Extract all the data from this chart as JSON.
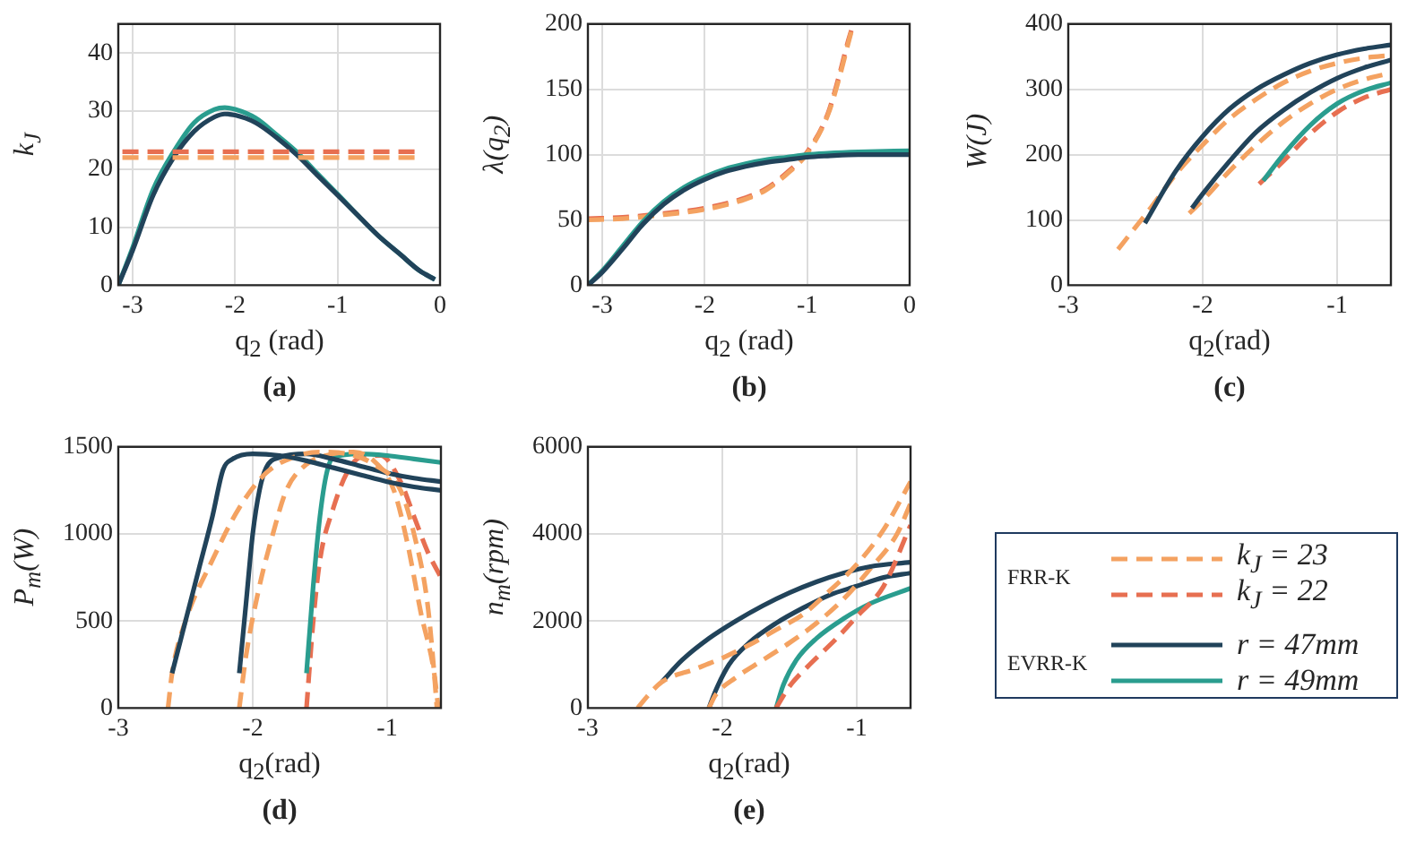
{
  "chart_data": [
    {
      "type": "line",
      "title": "(a)",
      "xlabel": "q$_{2}$ (rad)",
      "ylabel": "k$_{J}$",
      "xlim": [
        -3.14,
        0
      ],
      "xticks": [
        -3,
        -2,
        -1,
        0
      ],
      "ylim": [
        0,
        45
      ],
      "yticks": [
        0,
        10,
        20,
        30,
        40
      ],
      "grid": true,
      "legend": false,
      "marker": "none",
      "series": [
        {
          "color": "#f4a261",
          "line_style": "dashed",
          "x": [
            -3.1,
            -0.2
          ],
          "values": [
            22,
            22
          ]
        },
        {
          "color": "#e76f51",
          "line_style": "dashed",
          "x": [
            -3.1,
            -0.2
          ],
          "values": [
            23,
            23
          ]
        },
        {
          "color": "#21435a",
          "line_style": "solid",
          "x": [
            -3.14,
            -3.0,
            -2.8,
            -2.6,
            -2.4,
            -2.2,
            -2.1,
            -2.0,
            -1.8,
            -1.6,
            -1.4,
            -1.2,
            -1.0,
            -0.8,
            -0.6,
            -0.4,
            -0.2,
            -0.05
          ],
          "values": [
            0,
            6,
            15.5,
            22,
            26.5,
            29,
            29.5,
            29.3,
            28,
            25.5,
            22.5,
            19,
            15.5,
            12,
            8.5,
            5.5,
            2.5,
            1
          ]
        },
        {
          "color": "#2a9d8f",
          "line_style": "solid",
          "x": [
            -3.14,
            -3.0,
            -2.8,
            -2.6,
            -2.4,
            -2.2,
            -2.1,
            -2.0,
            -1.8,
            -1.6,
            -1.4,
            -1.2,
            -1.0,
            -0.8,
            -0.6,
            -0.4,
            -0.2,
            -0.05
          ],
          "values": [
            0,
            6.5,
            16.5,
            23,
            28,
            30.3,
            30.6,
            30.3,
            28.8,
            26,
            23,
            19.3,
            15.7,
            12,
            8.5,
            5.5,
            2.5,
            1
          ]
        }
      ]
    },
    {
      "type": "line",
      "title": "(b)",
      "xlabel": "q$_{2}$ (rad)",
      "ylabel": "λ(q$_{2}$)",
      "xlim": [
        -3.14,
        0
      ],
      "xticks": [
        -3,
        -2,
        -1,
        0
      ],
      "ylim": [
        0,
        200
      ],
      "yticks": [
        0,
        50,
        100,
        150,
        200
      ],
      "grid": true,
      "legend": false,
      "marker": "none",
      "series": [
        {
          "color": "#21435a",
          "line_style": "solid",
          "x": [
            -3.14,
            -3.0,
            -2.8,
            -2.6,
            -2.4,
            -2.2,
            -2.0,
            -1.8,
            -1.6,
            -1.4,
            -1.2,
            -1.0,
            -0.8,
            -0.5,
            0
          ],
          "values": [
            0,
            10,
            28,
            47,
            62,
            73,
            81,
            87,
            91,
            94,
            96,
            98,
            99,
            100,
            100
          ]
        },
        {
          "color": "#2a9d8f",
          "line_style": "solid",
          "x": [
            -3.14,
            -3.0,
            -2.8,
            -2.6,
            -2.4,
            -2.2,
            -2.0,
            -1.8,
            -1.6,
            -1.4,
            -1.2,
            -1.0,
            -0.8,
            -0.5,
            0
          ],
          "values": [
            0,
            11,
            30,
            49,
            64,
            75,
            83,
            89,
            93,
            96,
            98,
            100,
            101,
            102,
            103
          ]
        },
        {
          "color": "#f4a261",
          "line_style": "dashed",
          "x": [
            -3.14,
            -2.8,
            -2.4,
            -2.0,
            -1.6,
            -1.4,
            -1.2,
            -1.0,
            -0.8,
            -0.7,
            -0.6,
            -0.55
          ],
          "values": [
            50,
            51,
            54,
            58,
            66,
            73,
            85,
            101,
            130,
            155,
            185,
            200
          ]
        },
        {
          "color": "#e76f51",
          "line_style": "dashed",
          "x": [
            -3.14,
            -2.8,
            -2.4,
            -2.0,
            -1.6,
            -1.4,
            -1.2,
            -1.0,
            -0.8,
            -0.7,
            -0.6,
            -0.55
          ],
          "values": [
            51,
            52,
            55,
            59,
            67,
            74,
            86,
            102,
            131,
            157,
            187,
            200
          ]
        }
      ]
    },
    {
      "type": "line",
      "title": "(c)",
      "xlabel": "q$_{2}$(rad)",
      "ylabel": "W(J)",
      "xlim": [
        -3,
        -0.6
      ],
      "xticks": [
        -3,
        -2,
        -1
      ],
      "ylim": [
        0,
        400
      ],
      "yticks": [
        0,
        100,
        200,
        300,
        400
      ],
      "grid": true,
      "legend": false,
      "marker": "none",
      "series": [
        {
          "color": "#21435a",
          "line_style": "solid",
          "x": [
            -2.43,
            -2.2,
            -2.0,
            -1.8,
            -1.6,
            -1.4,
            -1.2,
            -1.0,
            -0.8,
            -0.6
          ],
          "values": [
            95,
            175,
            228,
            270,
            300,
            322,
            340,
            353,
            362,
            368
          ]
        },
        {
          "color": "#f4a261",
          "line_style": "dashed",
          "x": [
            -2.63,
            -2.4,
            -2.2,
            -2.0,
            -1.8,
            -1.6,
            -1.4,
            -1.2,
            -1.0,
            -0.8,
            -0.6
          ],
          "values": [
            55,
            115,
            170,
            215,
            255,
            285,
            310,
            328,
            340,
            348,
            352
          ]
        },
        {
          "color": "#21435a",
          "line_style": "solid",
          "x": [
            -2.08,
            -2.0,
            -1.8,
            -1.6,
            -1.4,
            -1.2,
            -1.0,
            -0.8,
            -0.6
          ],
          "values": [
            118,
            140,
            190,
            235,
            268,
            295,
            317,
            333,
            345
          ]
        },
        {
          "color": "#f4a261",
          "line_style": "dashed",
          "x": [
            -2.1,
            -2.0,
            -1.8,
            -1.6,
            -1.4,
            -1.2,
            -1.0,
            -0.8,
            -0.6
          ],
          "values": [
            110,
            130,
            175,
            215,
            250,
            278,
            300,
            315,
            325
          ]
        },
        {
          "color": "#2a9d8f",
          "line_style": "solid",
          "x": [
            -1.55,
            -1.4,
            -1.2,
            -1.0,
            -0.8,
            -0.6
          ],
          "values": [
            160,
            200,
            245,
            278,
            298,
            310
          ]
        },
        {
          "color": "#e76f51",
          "line_style": "dashed",
          "x": [
            -1.58,
            -1.4,
            -1.2,
            -1.0,
            -0.8,
            -0.6
          ],
          "values": [
            155,
            190,
            232,
            265,
            287,
            300
          ]
        }
      ]
    },
    {
      "type": "line",
      "title": "(d)",
      "xlabel": "q$_{2}$(rad)",
      "ylabel": "P$_{m}$(W)",
      "xlim": [
        -3,
        -0.6
      ],
      "xticks": [
        -3,
        -2,
        -1
      ],
      "ylim": [
        0,
        1500
      ],
      "yticks": [
        0,
        500,
        1000,
        1500
      ],
      "grid": true,
      "legend": false,
      "marker": "none",
      "series": [
        {
          "color": "#21435a",
          "line_style": "solid",
          "x": [
            -2.6,
            -2.5,
            -2.4,
            -2.3,
            -2.22,
            -2.15,
            -2.0,
            -1.8,
            -1.6,
            -1.4,
            -1.2,
            -1.0,
            -0.8,
            -0.6
          ],
          "values": [
            200,
            500,
            800,
            1100,
            1370,
            1430,
            1460,
            1450,
            1420,
            1380,
            1340,
            1300,
            1270,
            1250
          ]
        },
        {
          "color": "#f4a261",
          "line_style": "dashed",
          "x": [
            -2.63,
            -2.6,
            -2.5,
            -2.3,
            -2.1,
            -1.9,
            -1.7,
            -1.5,
            -1.3,
            -1.1,
            -0.9,
            -0.8,
            -0.7,
            -0.65,
            -0.63
          ],
          "values": [
            0,
            200,
            500,
            850,
            1150,
            1350,
            1440,
            1470,
            1460,
            1400,
            1250,
            1000,
            600,
            200,
            0
          ]
        },
        {
          "color": "#21435a",
          "line_style": "solid",
          "x": [
            -2.1,
            -2.05,
            -2.0,
            -1.95,
            -1.9,
            -1.8,
            -1.6,
            -1.4,
            -1.2,
            -1.0,
            -0.8,
            -0.6
          ],
          "values": [
            200,
            600,
            1000,
            1250,
            1380,
            1440,
            1460,
            1430,
            1390,
            1350,
            1320,
            1300
          ]
        },
        {
          "color": "#f4a261",
          "line_style": "dashed",
          "x": [
            -2.1,
            -2.05,
            -1.95,
            -1.85,
            -1.75,
            -1.6,
            -1.4,
            -1.25,
            -1.1,
            -0.95,
            -0.85,
            -0.75,
            -0.65,
            -0.62
          ],
          "values": [
            0,
            300,
            700,
            1000,
            1250,
            1400,
            1460,
            1470,
            1420,
            1250,
            950,
            550,
            200,
            0
          ]
        },
        {
          "color": "#2a9d8f",
          "line_style": "solid",
          "x": [
            -1.6,
            -1.55,
            -1.5,
            -1.45,
            -1.4,
            -1.2,
            -1.0,
            -0.8,
            -0.6
          ],
          "values": [
            200,
            700,
            1100,
            1350,
            1440,
            1460,
            1450,
            1430,
            1410
          ]
        },
        {
          "color": "#e76f51",
          "line_style": "dashed",
          "x": [
            -1.6,
            -1.55,
            -1.5,
            -1.4,
            -1.3,
            -1.2,
            -1.05,
            -0.9,
            -0.8,
            -0.7,
            -0.6
          ],
          "values": [
            0,
            500,
            850,
            1150,
            1350,
            1440,
            1450,
            1300,
            1100,
            900,
            750
          ]
        }
      ]
    },
    {
      "type": "line",
      "title": "(e)",
      "xlabel": "q$_{2}$(rad)",
      "ylabel": "n$_{m}$(rpm)",
      "xlim": [
        -3,
        -0.6
      ],
      "xticks": [
        -3,
        -2,
        -1
      ],
      "ylim": [
        0,
        6000
      ],
      "yticks": [
        0,
        2000,
        4000,
        6000
      ],
      "grid": true,
      "legend": "right",
      "marker": "none",
      "annotations": [
        "FRR-K",
        "EVRR-K"
      ],
      "series": [
        {
          "name": "k$_{J}$ = 23",
          "color": "#f4a261",
          "line_style": "dashed",
          "x": [
            -2.63,
            -2.55,
            -2.45,
            -2.2,
            -2.0,
            -1.8,
            -1.6,
            -1.4,
            -1.2,
            -1.0,
            -0.8,
            -0.6
          ],
          "values": [
            0,
            300,
            600,
            900,
            1150,
            1450,
            1800,
            2150,
            2700,
            3300,
            4100,
            5200
          ]
        },
        {
          "name": "k$_{J}$ = 22",
          "color": "#e76f51",
          "line_style": "dashed",
          "x": [
            -1.6,
            -1.5,
            -1.35,
            -1.15,
            -1.0,
            -0.8,
            -0.6
          ],
          "values": [
            0,
            500,
            1000,
            1600,
            2100,
            2800,
            4200
          ]
        },
        {
          "name": "r = 47mm",
          "color": "#21435a",
          "line_style": "solid",
          "x": [
            -2.45,
            -2.3,
            -2.1,
            -1.9,
            -1.7,
            -1.5,
            -1.3,
            -1.1,
            -0.9,
            -0.6
          ],
          "values": [
            600,
            1100,
            1600,
            2000,
            2350,
            2650,
            2900,
            3100,
            3250,
            3350
          ]
        },
        {
          "name": "r = 49mm",
          "color": "#2a9d8f",
          "line_style": "solid",
          "x": [
            -1.6,
            -1.55,
            -1.45,
            -1.3,
            -1.1,
            -0.9,
            -0.6
          ],
          "values": [
            0,
            500,
            1100,
            1600,
            2050,
            2400,
            2750
          ]
        },
        {
          "color": "#f4a261",
          "line_style": "dashed",
          "x": [
            -2.1,
            -2.05,
            -1.9,
            -1.7,
            -1.5,
            -1.3,
            -1.1,
            -0.9,
            -0.7,
            -0.6
          ],
          "values": [
            0,
            300,
            700,
            1100,
            1500,
            1950,
            2500,
            3200,
            4000,
            4700
          ]
        },
        {
          "color": "#21435a",
          "line_style": "solid",
          "x": [
            -2.1,
            -2.05,
            -1.95,
            -1.8,
            -1.6,
            -1.4,
            -1.2,
            -1.0,
            -0.8,
            -0.6
          ],
          "values": [
            0,
            400,
            1000,
            1500,
            1950,
            2300,
            2600,
            2800,
            3000,
            3100
          ]
        }
      ]
    }
  ]
}
